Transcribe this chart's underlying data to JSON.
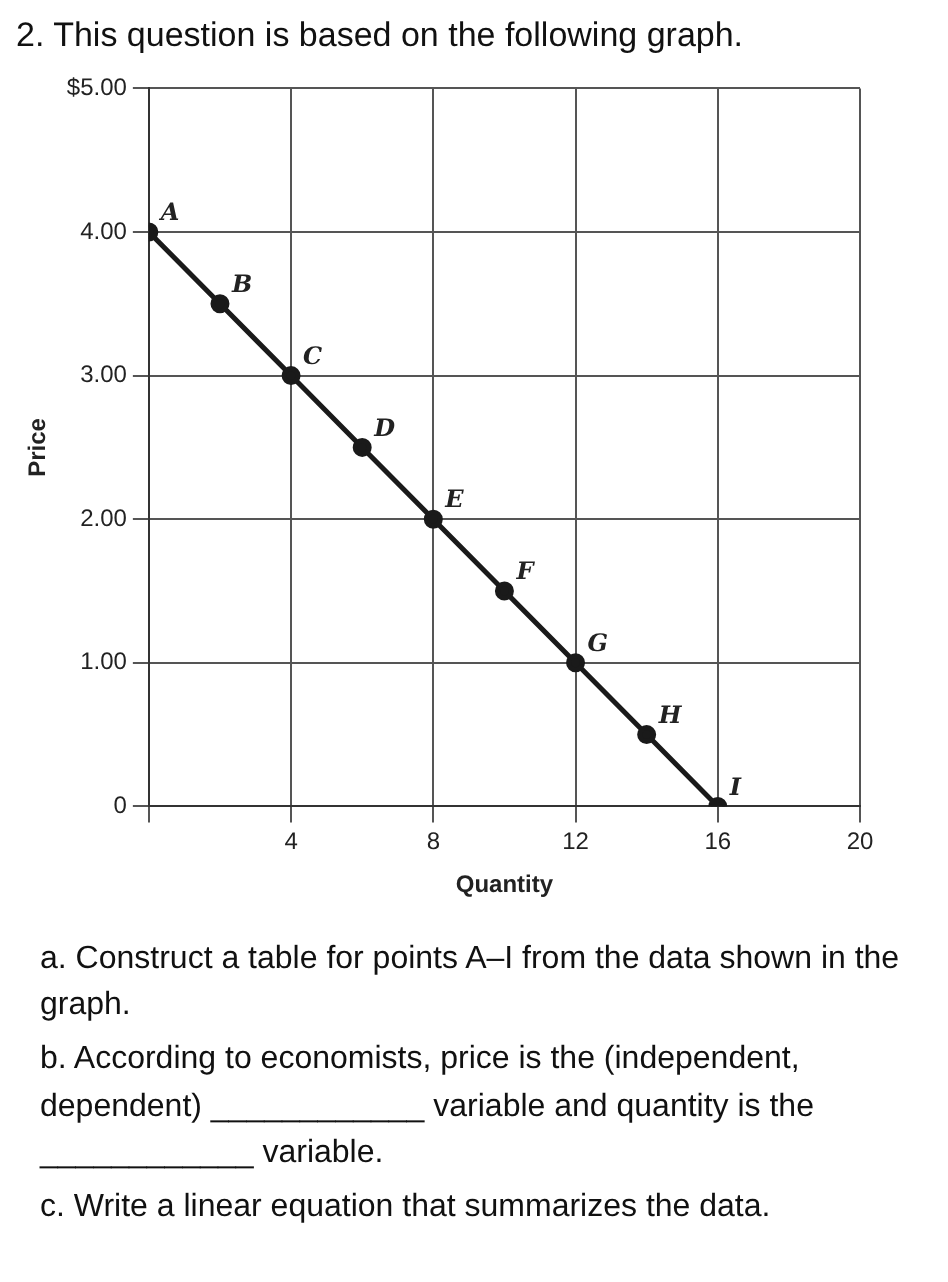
{
  "chart_data": {
    "type": "line",
    "title": "2. This question is based on the following graph.",
    "xlabel": "Quantity",
    "ylabel": "Price",
    "x": [
      0,
      2,
      4,
      6,
      8,
      10,
      12,
      14,
      16
    ],
    "series": [
      {
        "color": "#1a1a1a",
        "values": [
          4,
          3.5,
          3,
          2.5,
          2,
          1.5,
          1,
          0.5,
          0
        ]
      }
    ],
    "xlim": [
      0,
      20
    ],
    "ylim": [
      0,
      5
    ],
    "xticks": [
      {
        "value": 0,
        "label": null
      },
      4,
      8,
      12,
      16,
      20
    ],
    "yticks": [
      {
        "value": 0,
        "label": "0"
      },
      {
        "value": 1,
        "label": "1.00"
      },
      {
        "value": 2,
        "label": "2.00"
      },
      {
        "value": 3,
        "label": "3.00"
      },
      {
        "value": 4,
        "label": "4.00"
      },
      {
        "value": 5,
        "label": "$5.00"
      }
    ],
    "grid": true,
    "marker": "circle",
    "line_style": "solid",
    "legend": false,
    "annotations": [
      {
        "text": "A",
        "x": 0,
        "y": 4
      },
      {
        "text": "B",
        "x": 2,
        "y": 3.5
      },
      {
        "text": "C",
        "x": 4,
        "y": 3
      },
      {
        "text": "D",
        "x": 6,
        "y": 2.5
      },
      {
        "text": "E",
        "x": 8,
        "y": 2
      },
      {
        "text": "F",
        "x": 10,
        "y": 1.5
      },
      {
        "text": "G",
        "x": 12,
        "y": 1
      },
      {
        "text": "H",
        "x": 14,
        "y": 0.5
      },
      {
        "text": "I",
        "x": 16,
        "y": 0
      },
      "a. Construct a table for points A–I from the data shown in the graph.",
      "b. According to economists, price is the (independent, dependent) ____________ variable and quantity is the ____________ variable.",
      "c. Write a linear equation that summarizes the data."
    ]
  }
}
